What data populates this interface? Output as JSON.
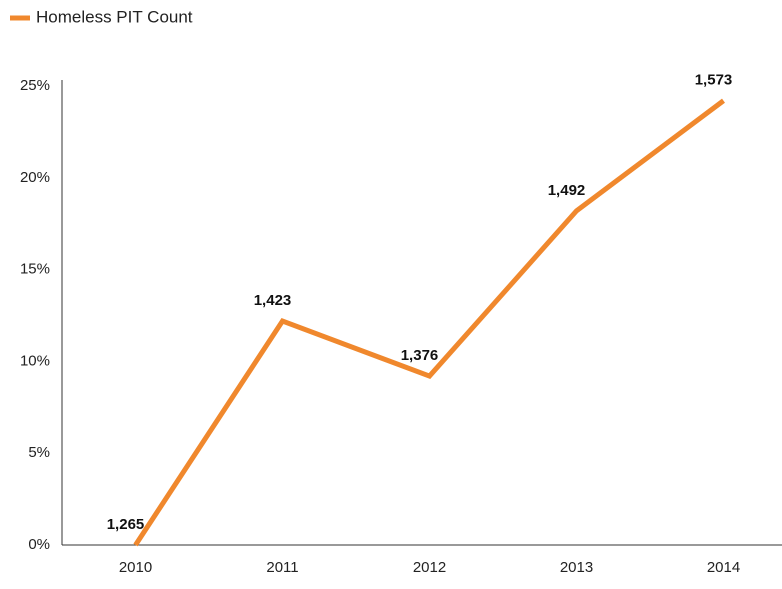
{
  "chart_data": {
    "type": "line",
    "categories": [
      "2010",
      "2011",
      "2012",
      "2013",
      "2014"
    ],
    "series": [
      {
        "name": "Homeless PIT Count",
        "color": "#f0882d",
        "values": [
          0,
          12.2,
          9.2,
          18.2,
          24.2
        ]
      }
    ],
    "annotations": [
      "1,265",
      "1,423",
      "1,376",
      "1,492",
      "1,573"
    ],
    "ylim": [
      0,
      25
    ],
    "yticks": [
      {
        "value": 0,
        "label": "0%"
      },
      {
        "value": 5,
        "label": "5%"
      },
      {
        "value": 10,
        "label": "10%"
      },
      {
        "value": 15,
        "label": "15%"
      },
      {
        "value": 20,
        "label": "20%"
      },
      {
        "value": 25,
        "label": "25%"
      }
    ],
    "grid": false,
    "legend": "top-left"
  }
}
